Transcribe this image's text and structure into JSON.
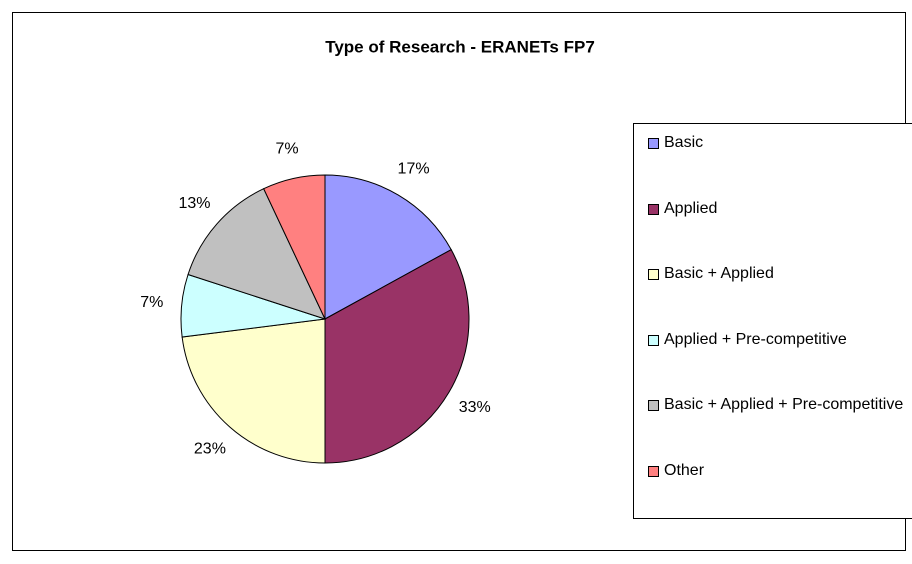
{
  "chart_data": {
    "type": "pie",
    "title": "Type of Research - ERANETs FP7",
    "categories": [
      "Basic",
      "Applied",
      "Basic + Applied",
      "Applied + Pre-competitive",
      "Basic + Applied + Pre-competitive",
      "Other"
    ],
    "values": [
      17,
      33,
      23,
      7,
      13,
      7
    ],
    "value_labels": [
      "17%",
      "33%",
      "23%",
      "7%",
      "13%",
      "7%"
    ],
    "colors": [
      "#9999ff",
      "#993366",
      "#ffffcc",
      "#ccffff",
      "#c0c0c0",
      "#ff8080"
    ],
    "legend": "right"
  }
}
